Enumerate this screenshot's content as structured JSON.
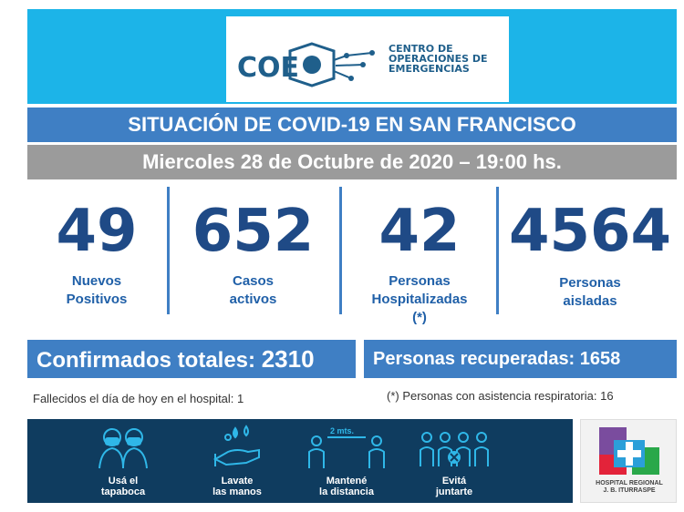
{
  "logo": {
    "abbr": "COE",
    "line1": "CENTRO DE",
    "line2": "OPERACIONES DE",
    "line3": "EMERGENCIAS"
  },
  "title": "SITUACIÓN DE COVID-19 EN SAN FRANCISCO",
  "date": "Miercoles 28 de Octubre de 2020 – 19:00 hs.",
  "stats": [
    {
      "value": "49",
      "label1": "Nuevos",
      "label2": "Positivos",
      "label3": ""
    },
    {
      "value": "652",
      "label1": "Casos",
      "label2": "activos",
      "label3": ""
    },
    {
      "value": "42",
      "label1": "Personas",
      "label2": "Hospitalizadas",
      "label3": "(*)"
    },
    {
      "value": "4564",
      "label1": "Personas",
      "label2": "aisladas",
      "label3": ""
    }
  ],
  "confirmed": {
    "label": "Confirmados totales:",
    "value": "2310"
  },
  "recovered": {
    "label": "Personas recuperadas:",
    "value": "1658"
  },
  "notes": {
    "deaths": "Fallecidos el día de hoy en el hospital: 1",
    "respiratory": "(*) Personas con asistencia respiratoria: 16"
  },
  "tips": [
    {
      "line1": "Usá el",
      "line2": "tapaboca",
      "icon": "mask-icon"
    },
    {
      "line1": "Lavate",
      "line2": "las manos",
      "icon": "hand-wash-icon"
    },
    {
      "line1": "Mantené",
      "line2": "la distancia",
      "icon": "distance-icon",
      "badge": "2 mts."
    },
    {
      "line1": "Evitá",
      "line2": "juntarte",
      "icon": "group-icon"
    }
  ],
  "hospital": {
    "line1": "HOSPITAL REGIONAL",
    "line2": "J. B. ITURRASPE"
  },
  "colors": {
    "header": "#1cb4e8",
    "bar": "#3f7fc4",
    "date": "#9b9b9b",
    "number": "#1f4a86",
    "footer": "#0f3c5f"
  }
}
